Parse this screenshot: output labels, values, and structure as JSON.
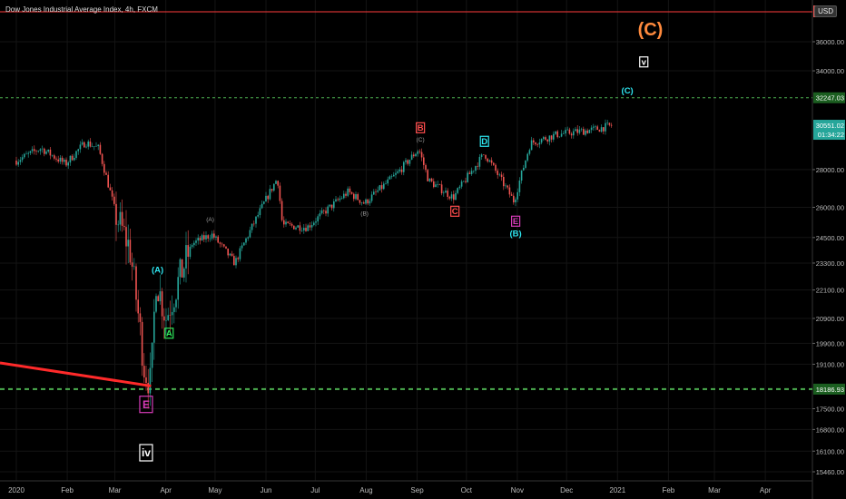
{
  "header": {
    "title": "Dow Jones Industrial Average Index, 4h, FXCM",
    "currency": "USD"
  },
  "colors": {
    "candle_up": "#26a69a",
    "candle_down": "#ef5350",
    "level_line": "#4caf50",
    "resistance_line": "#ff3b3b",
    "trend_line": "#ff2a2a",
    "label_orange": "#ff8a3d",
    "label_cyan": "#2ee6f0",
    "label_green": "#2ee65a",
    "label_red": "#ff4d4d",
    "label_magenta": "#d63bb8",
    "label_grey": "#9e9e9e"
  },
  "chart_data": {
    "type": "candlestick",
    "ylim": [
      15000,
      37500
    ],
    "y_scale": "log",
    "x_ticks": [
      "2020",
      "Feb",
      "Mar",
      "Apr",
      "May",
      "Jun",
      "Jul",
      "Aug",
      "Sep",
      "Oct",
      "Nov",
      "Dec",
      "2021",
      "Feb",
      "Mar",
      "Apr"
    ],
    "y_ticks": [
      "36000.00",
      "34000.00",
      "32247.03",
      "30551.02",
      "28000.00",
      "26000.00",
      "24500.00",
      "23300.00",
      "22100.00",
      "20900.00",
      "19900.00",
      "19100.00",
      "18186.93",
      "17500.00",
      "16800.00",
      "16100.00",
      "15460.00"
    ],
    "price_path": [
      [
        "2020-01-01",
        28500
      ],
      [
        "2020-01-16",
        29200
      ],
      [
        "2020-01-31",
        28300
      ],
      [
        "2020-02-12",
        29550
      ],
      [
        "2020-02-20",
        29200
      ],
      [
        "2020-03-02",
        25500
      ],
      [
        "2020-03-10",
        24000
      ],
      [
        "2020-03-19",
        18900
      ],
      [
        "2020-03-23",
        18350
      ],
      [
        "2020-03-26",
        22600
      ],
      [
        "2020-04-01",
        20900
      ],
      [
        "2020-04-17",
        24200
      ],
      [
        "2020-04-29",
        24650
      ],
      [
        "2020-05-13",
        23300
      ],
      [
        "2020-06-08",
        27550
      ],
      [
        "2020-06-11",
        25100
      ],
      [
        "2020-06-26",
        25000
      ],
      [
        "2020-07-21",
        26800
      ],
      [
        "2020-07-31",
        26200
      ],
      [
        "2020-08-20",
        27800
      ],
      [
        "2020-09-02",
        29150
      ],
      [
        "2020-09-08",
        27400
      ],
      [
        "2020-09-23",
        26500
      ],
      [
        "2020-10-12",
        28900
      ],
      [
        "2020-10-30",
        26300
      ],
      [
        "2020-11-09",
        29500
      ],
      [
        "2020-11-25",
        30000
      ],
      [
        "2020-12-18",
        30300
      ],
      [
        "2020-12-29",
        30551.02
      ]
    ],
    "levels": [
      {
        "price": "32247.03",
        "style": "dashed",
        "color": "#4caf50"
      },
      {
        "price": "18186.93",
        "style": "dashed-bold",
        "color": "#4caf50"
      },
      {
        "price": "37000",
        "style": "solid",
        "color": "#ff3b3b"
      }
    ],
    "current_price": {
      "value": "30551.02",
      "countdown": "01:34:22"
    },
    "trend_line": [
      [
        "2019-11-01",
        20000
      ],
      [
        "2020-03-23",
        18300
      ]
    ],
    "annotations": [
      {
        "text": "(C)",
        "date": "2021-01-21",
        "price": 36900,
        "color": "#ff8a3d",
        "size": "large",
        "boxed": false
      },
      {
        "text": "v",
        "date": "2021-01-17",
        "price": 34600,
        "color": "#ffffff",
        "boxed": true
      },
      {
        "text": "(C)",
        "date": "2021-01-07",
        "price": 32700,
        "color": "#2ee6f0",
        "boxed": false
      },
      {
        "text": "B",
        "date": "2020-09-03",
        "price": 30400,
        "color": "#ff4d4d",
        "boxed": true
      },
      {
        "text": "(C)",
        "date": "2020-09-03",
        "price": 29700,
        "color": "#9e9e9e",
        "boxed": false,
        "small": true
      },
      {
        "text": "D",
        "date": "2020-10-12",
        "price": 29600,
        "color": "#2ee6f0",
        "boxed": true
      },
      {
        "text": "C",
        "date": "2020-09-24",
        "price": 25800,
        "color": "#ff4d4d",
        "boxed": true
      },
      {
        "text": "E",
        "date": "2020-10-31",
        "price": 25300,
        "color": "#d63bb8",
        "boxed": true
      },
      {
        "text": "(B)",
        "date": "2020-10-31",
        "price": 24700,
        "color": "#2ee6f0",
        "boxed": false
      },
      {
        "text": "(B)",
        "date": "2020-07-31",
        "price": 25700,
        "color": "#9e9e9e",
        "boxed": false,
        "small": true
      },
      {
        "text": "(A)",
        "date": "2020-04-28",
        "price": 25400,
        "color": "#9e9e9e",
        "boxed": false,
        "small": true
      },
      {
        "text": "(A)",
        "date": "2020-03-27",
        "price": 23000,
        "color": "#2ee6f0",
        "boxed": false
      },
      {
        "text": "A",
        "date": "2020-04-03",
        "price": 20300,
        "color": "#2ee65a",
        "boxed": true
      },
      {
        "text": "E",
        "date": "2020-03-20",
        "price": 17650,
        "color": "#d63bb8",
        "boxed": true,
        "size": "medium"
      },
      {
        "text": "iv",
        "date": "2020-03-20",
        "price": 16050,
        "color": "#ffffff",
        "boxed": true,
        "size": "medium"
      }
    ]
  }
}
